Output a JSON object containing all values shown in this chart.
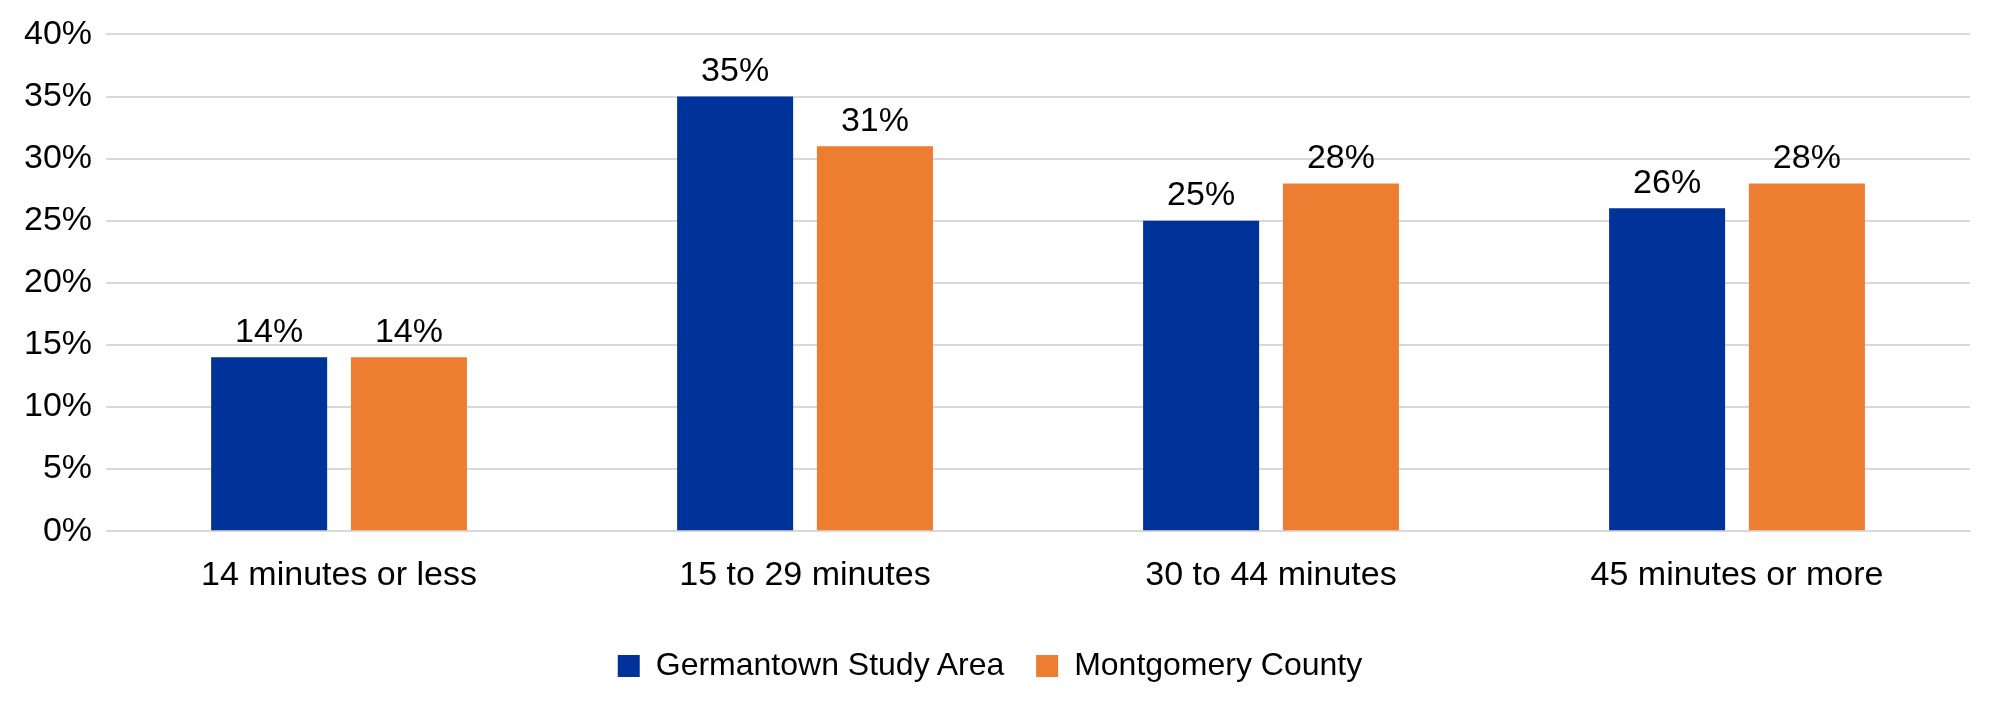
{
  "chart_data": {
    "type": "bar",
    "categories": [
      "14 minutes or less",
      "15 to 29 minutes",
      "30 to 44 minutes",
      "45 minutes or more"
    ],
    "series": [
      {
        "name": "Germantown Study Area",
        "color": "#00339a",
        "values": [
          14,
          35,
          25,
          26
        ],
        "value_labels": [
          "14%",
          "35%",
          "25%",
          "26%"
        ]
      },
      {
        "name": "Montgomery County",
        "color": "#ed7d31",
        "values": [
          14,
          31,
          28,
          28
        ],
        "value_labels": [
          "14%",
          "31%",
          "28%",
          "28%"
        ]
      }
    ],
    "ylim": [
      0,
      40
    ],
    "yticks": [
      {
        "value": 0,
        "label": "0%"
      },
      {
        "value": 5,
        "label": "5%"
      },
      {
        "value": 10,
        "label": "10%"
      },
      {
        "value": 15,
        "label": "15%"
      },
      {
        "value": 20,
        "label": "20%"
      },
      {
        "value": 25,
        "label": "25%"
      },
      {
        "value": 30,
        "label": "30%"
      },
      {
        "value": 35,
        "label": "35%"
      },
      {
        "value": 40,
        "label": "40%"
      }
    ],
    "grid": "y",
    "legend": "bottom"
  }
}
